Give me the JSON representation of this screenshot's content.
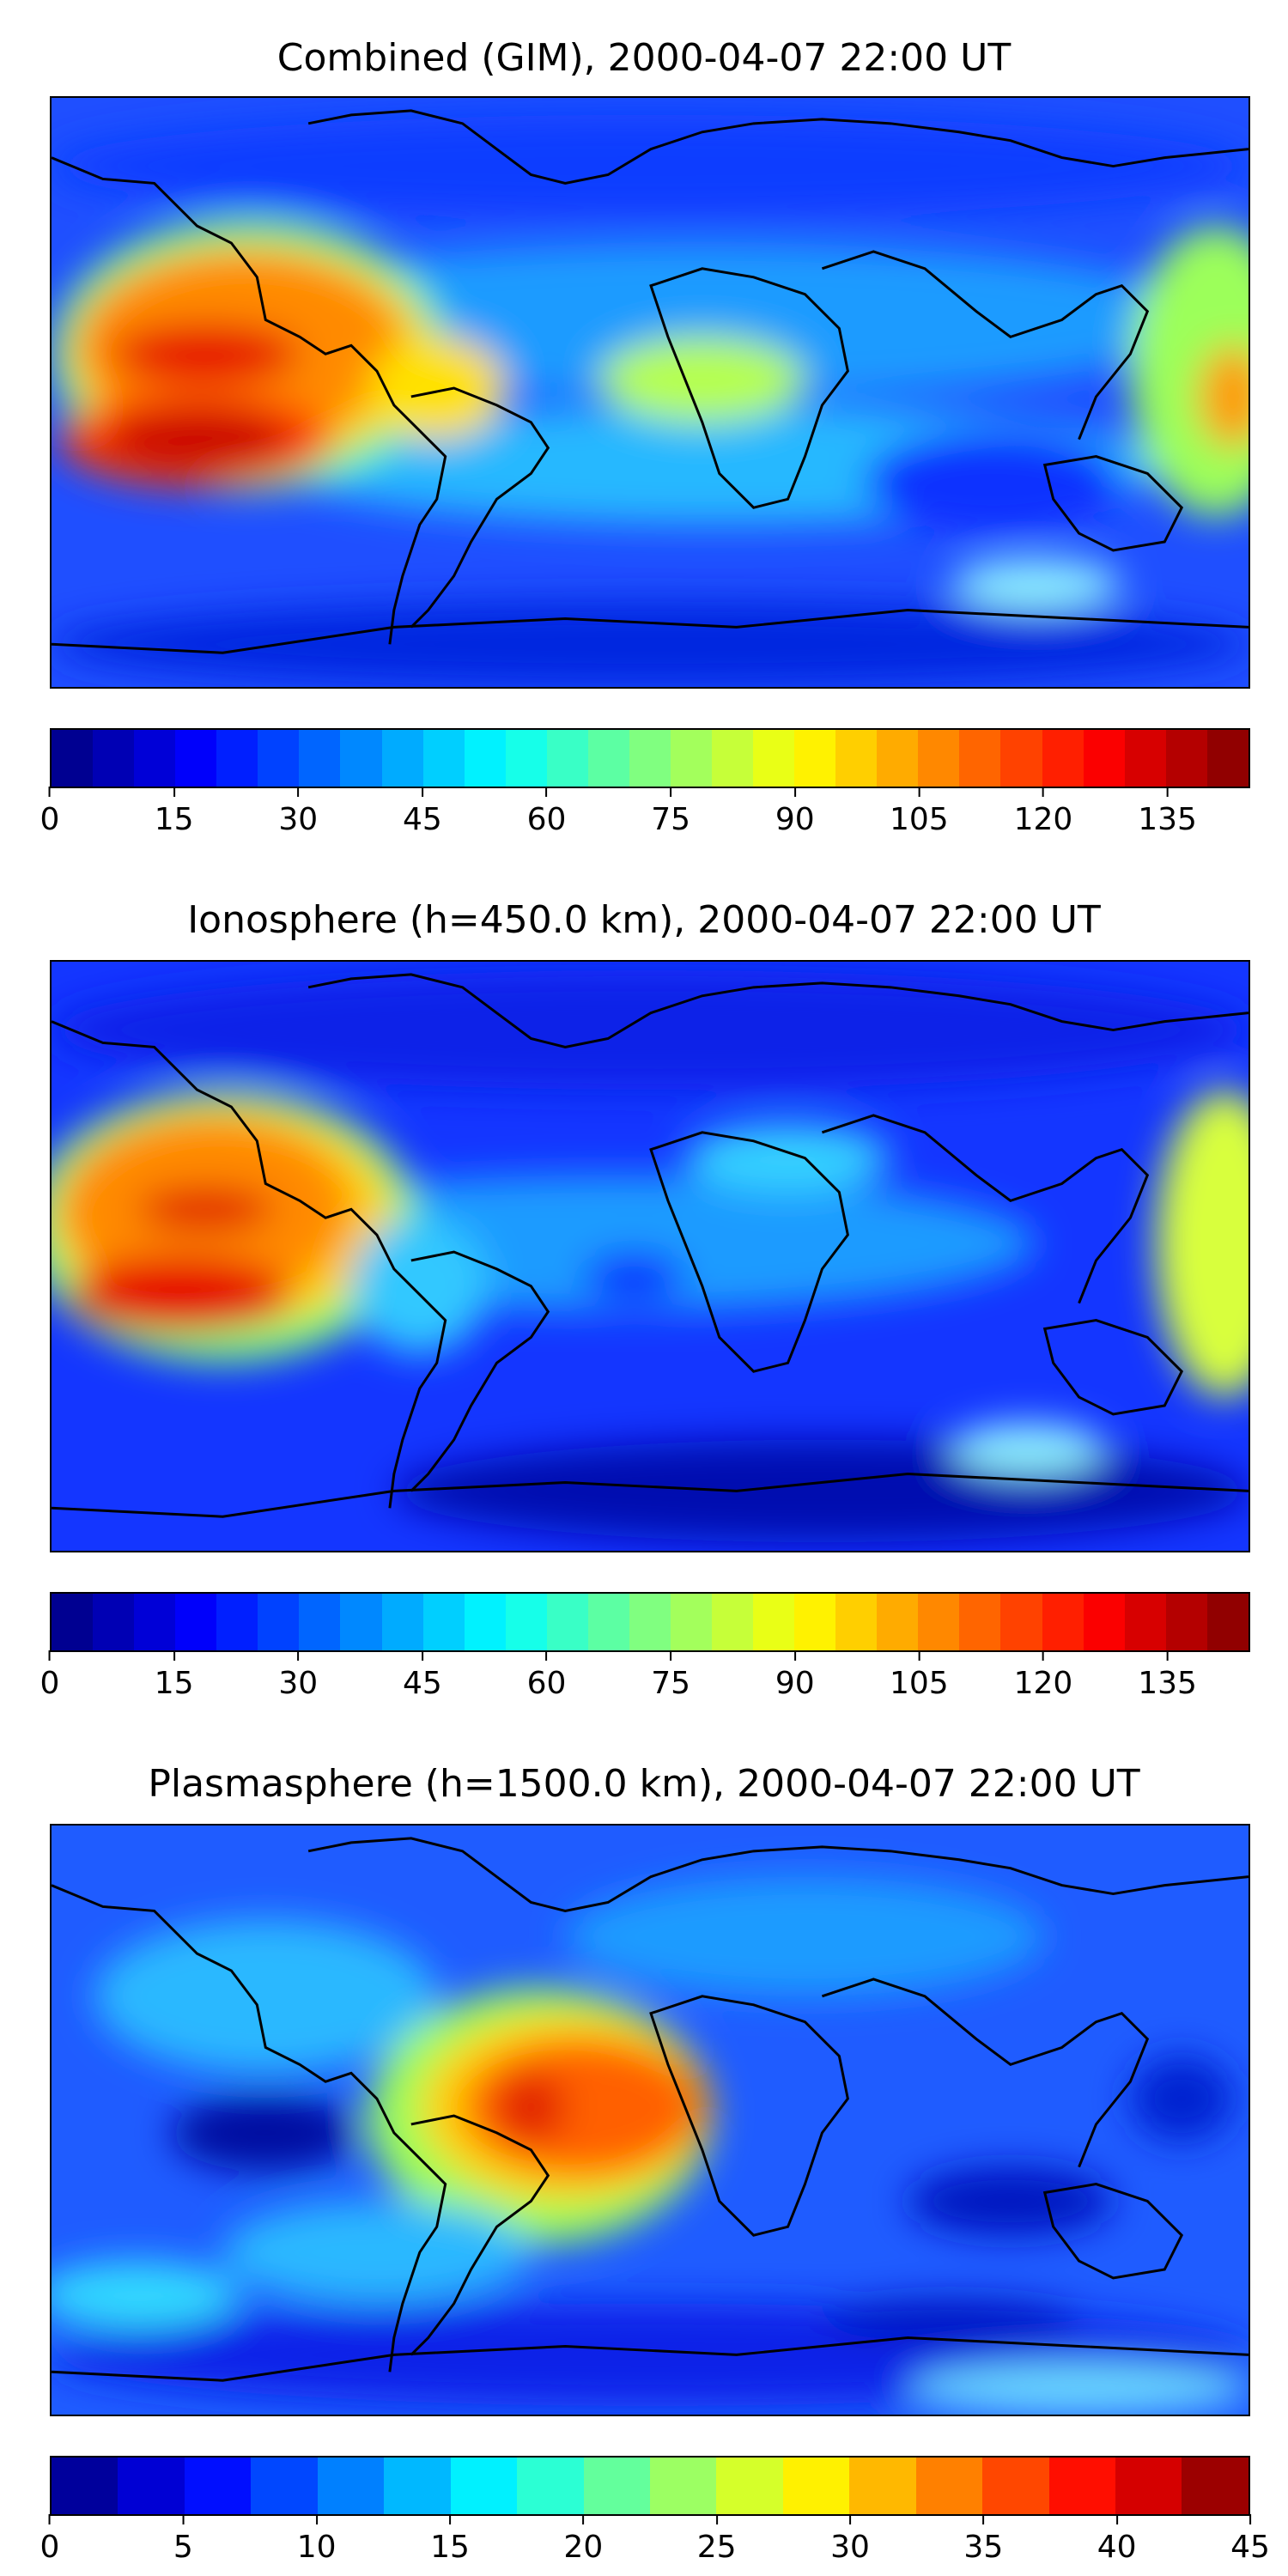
{
  "panels": [
    {
      "title": "Combined (GIM), 2000-04-07 22:00 UT",
      "colorbar": {
        "min": 0,
        "max": 145,
        "ticks": [
          "0",
          "15",
          "30",
          "45",
          "60",
          "75",
          "90",
          "105",
          "120",
          "135"
        ],
        "tick_values": [
          0,
          15,
          30,
          45,
          60,
          75,
          90,
          105,
          120,
          135
        ]
      }
    },
    {
      "title": "Ionosphere  (h=450.0 km), 2000-04-07 22:00 UT",
      "colorbar": {
        "min": 0,
        "max": 145,
        "ticks": [
          "0",
          "15",
          "30",
          "45",
          "60",
          "75",
          "90",
          "105",
          "120",
          "135"
        ],
        "tick_values": [
          0,
          15,
          30,
          45,
          60,
          75,
          90,
          105,
          120,
          135
        ]
      }
    },
    {
      "title": "Plasmasphere (h=1500.0 km), 2000-04-07 22:00 UT",
      "colorbar": {
        "min": 0,
        "max": 45,
        "ticks": [
          "0",
          "5",
          "10",
          "15",
          "20",
          "25",
          "30",
          "35",
          "40",
          "45"
        ],
        "tick_values": [
          0,
          5,
          10,
          15,
          20,
          25,
          30,
          35,
          40,
          45
        ]
      }
    }
  ],
  "colormap": "jet"
}
